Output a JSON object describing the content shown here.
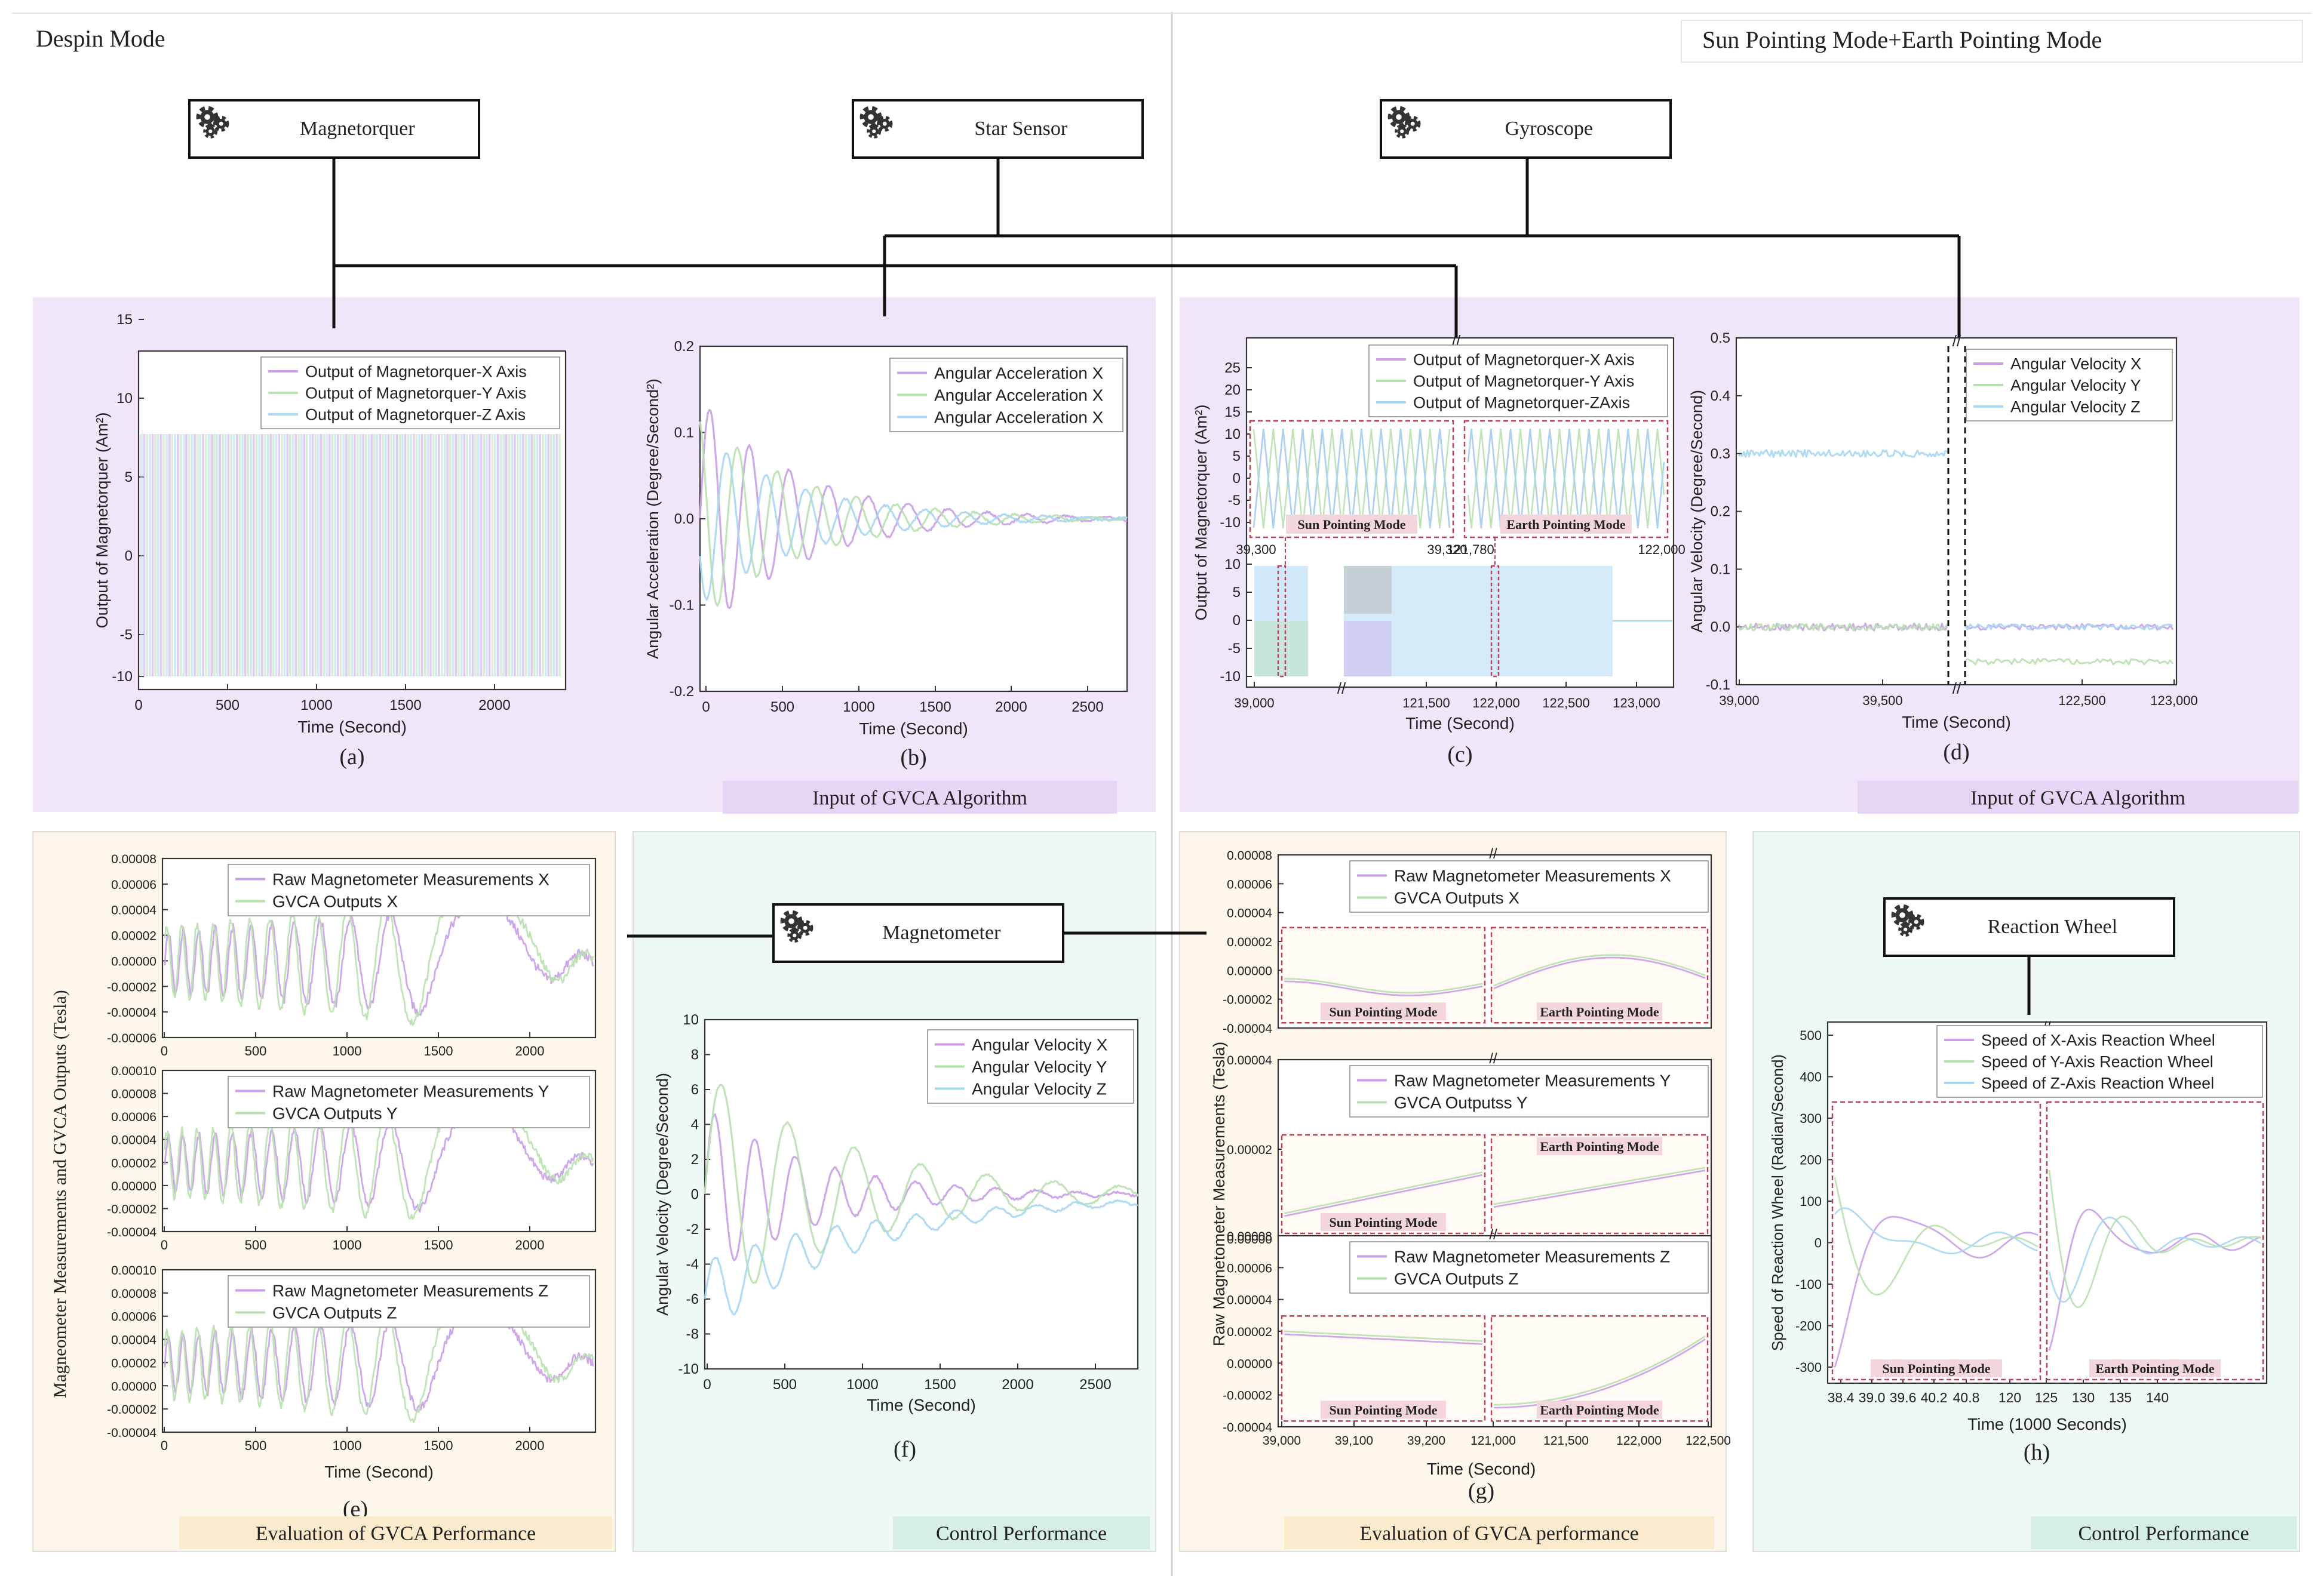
{
  "modes": {
    "left": "Despin Mode",
    "right": "Sun Pointing Mode+Earth Pointing Mode"
  },
  "devices": {
    "magnetorquer": "Magnetorquer",
    "star_sensor": "Star Sensor",
    "gyroscope": "Gyroscope",
    "magnetometer": "Magnetometer",
    "reaction_wheel": "Reaction Wheel"
  },
  "section_labels": {
    "input_left": "Input of GVCA Algorithm",
    "input_right": "Input of GVCA Algorithm",
    "eval_left": "Evaluation of GVCA Performance",
    "control_left": "Control Performance",
    "eval_right": "Evaluation of GVCA performance",
    "control_right": "Control Performance"
  },
  "mode_tags": {
    "sun": "Sun Pointing Mode",
    "earth": "Earth Pointing Mode"
  },
  "colors": {
    "purple": "#c9a0e8",
    "green": "#b9e0b0",
    "blue": "#a9d6f2",
    "inset": "#b8405a",
    "panel_purple": "#efe6fa",
    "panel_cream": "#fdf6ea",
    "panel_mint": "#eef8f4"
  },
  "chart_data": [
    {
      "id": "a",
      "type": "line",
      "caption": "(a)",
      "xlabel": "Time (Second)",
      "ylabel": "Output of Magnetorquer (Am²)",
      "xlim": [
        0,
        2400
      ],
      "ylim": [
        -12,
        16
      ],
      "x_ticks": [
        "0",
        "500",
        "1000",
        "1500",
        "2000"
      ],
      "y_ticks": [
        "-10",
        "-5",
        "0",
        "5",
        "10",
        "15"
      ],
      "series": [
        {
          "name": "Output of Magnetorquer-X Axis",
          "color": "#c9a0e8",
          "pattern": "bang-bang ±10"
        },
        {
          "name": "Output of Magnetorquer-Y Axis",
          "color": "#b9e0b0",
          "pattern": "bang-bang ±10"
        },
        {
          "name": "Output of Magnetorquer-Z Axis",
          "color": "#a9d6f2",
          "pattern": "bang-bang ±10"
        }
      ]
    },
    {
      "id": "b",
      "type": "line",
      "caption": "(b)",
      "xlabel": "Time (Second)",
      "ylabel": "Angular Acceleration (Degree/Second²)",
      "xlim": [
        0,
        2800
      ],
      "ylim": [
        -0.2,
        0.2
      ],
      "x_ticks": [
        "0",
        "500",
        "1000",
        "1500",
        "2000",
        "2500"
      ],
      "y_ticks": [
        "-0.2",
        "-0.1",
        "0.0",
        "0.1",
        "0.2"
      ],
      "series": [
        {
          "name": "Angular Acceleration X",
          "color": "#c9a0e8",
          "amp": 0.14,
          "period": 260,
          "decay": 650,
          "phase": 0
        },
        {
          "name": "Angular Acceleration X",
          "color": "#b9e0b0",
          "amp": 0.12,
          "period": 260,
          "decay": 650,
          "phase": 1.9
        },
        {
          "name": "Angular Acceleration X",
          "color": "#a9d6f2",
          "amp": 0.1,
          "period": 260,
          "decay": 650,
          "phase": 3.6
        }
      ]
    },
    {
      "id": "c",
      "type": "line",
      "caption": "(c)",
      "xlabel": "Time (Second)",
      "ylabel": "Output of Magnetorquer (Am²)",
      "x_ticks": [
        "39,000",
        "121,500",
        "122,000",
        "122,500",
        "123,000"
      ],
      "y_ticks_top": [
        "-10",
        "-5",
        "0",
        "5",
        "10",
        "15",
        "20",
        "25"
      ],
      "y_ticks_bottom": [
        "-10",
        "-5",
        "0",
        "5",
        "10"
      ],
      "inset_ticks": [
        "39,300",
        "39,320",
        "121,780",
        "122,000"
      ],
      "series": [
        {
          "name": "Output of Magnetorquer-X Axis",
          "color": "#c9a0e8"
        },
        {
          "name": "Output of Magnetorquer-Y Axis",
          "color": "#b9e0b0"
        },
        {
          "name": "Output of Magnetorquer-ZAxis",
          "color": "#a9d6f2"
        }
      ]
    },
    {
      "id": "d",
      "type": "line",
      "caption": "(d)",
      "xlabel": "Time (Second)",
      "ylabel": "Angular Velocity (Degree/Second)",
      "x_ticks": [
        "39,000",
        "39,500",
        "122,500",
        "123,000"
      ],
      "y_ticks": [
        "-0.1",
        "0.0",
        "0.1",
        "0.2",
        "0.3",
        "0.4",
        "0.5"
      ],
      "series": [
        {
          "name": "Angular Velocity X",
          "color": "#c9a0e8",
          "level_sun": 0.0,
          "level_earth": 0.0
        },
        {
          "name": "Angular Velocity Y",
          "color": "#b9e0b0",
          "level_sun": 0.0,
          "level_earth": -0.06
        },
        {
          "name": "Angular Velocity Z",
          "color": "#a9d6f2",
          "level_sun": 0.3,
          "level_earth": 0.0
        }
      ]
    },
    {
      "id": "e",
      "type": "line",
      "caption": "(e)",
      "xlabel": "Time (Second)",
      "ylabel": "Magneometer Measurements and GVCA Outputs (Tesla)",
      "x_ticks": [
        "0",
        "500",
        "1000",
        "1500",
        "2000"
      ],
      "panels": [
        {
          "legend": [
            "Raw Magnetometer Measurements X",
            "GVCA Outputs X"
          ],
          "y_ticks": [
            "-0.00006",
            "-0.00004",
            "-0.00002",
            "0.00000",
            "0.00002",
            "0.00004",
            "0.00006",
            "0.00008"
          ]
        },
        {
          "legend": [
            "Raw Magnetometer Measurements Y",
            "GVCA Outputs Y"
          ],
          "y_ticks": [
            "-0.00004",
            "-0.00002",
            "0.00000",
            "0.00002",
            "0.00004",
            "0.00006",
            "0.00008",
            "0.00010"
          ]
        },
        {
          "legend": [
            "Raw Magnetometer Measurements Z",
            "GVCA Outputs Z"
          ],
          "y_ticks": [
            "-0.00004",
            "-0.00002",
            "0.00000",
            "0.00002",
            "0.00004",
            "0.00006",
            "0.00008",
            "0.00010"
          ]
        }
      ]
    },
    {
      "id": "f",
      "type": "line",
      "caption": "(f)",
      "xlabel": "Time (Second)",
      "ylabel": "Angular Velocity (Degree/Second)",
      "xlim": [
        0,
        2800
      ],
      "ylim": [
        -10,
        10
      ],
      "x_ticks": [
        "0",
        "500",
        "1000",
        "1500",
        "2000",
        "2500"
      ],
      "y_ticks": [
        "-10",
        "-8",
        "-6",
        "-4",
        "-2",
        "0",
        "2",
        "4",
        "6",
        "8",
        "10"
      ],
      "series": [
        {
          "name": "Angular Velocity X",
          "color": "#c9a0e8",
          "amp": 5,
          "period": 260,
          "decay": 700,
          "offset": 0
        },
        {
          "name": "Angular Velocity Y",
          "color": "#b9e0b0",
          "amp": 7,
          "period": 430,
          "decay": 1000,
          "offset": 0
        },
        {
          "name": "Angular Velocity Z",
          "color": "#a9d6f2",
          "amp": 2.2,
          "period": 260,
          "decay": 1000,
          "offset": -6
        }
      ]
    },
    {
      "id": "g",
      "type": "line",
      "caption": "(g)",
      "xlabel": "Time (Second)",
      "ylabel": "Raw Magnetometer Measurements (Tesla)",
      "x_ticks": [
        "39,000",
        "39,100",
        "39,200",
        "121,000",
        "121,500",
        "122,000",
        "122,500"
      ],
      "panels": [
        {
          "legend": [
            "Raw Magnetometer Measurements X",
            "GVCA Outputs X"
          ],
          "y_ticks": [
            "-0.00004",
            "-0.00002",
            "0.00000",
            "0.00002",
            "0.00004",
            "0.00006",
            "0.00008"
          ]
        },
        {
          "legend": [
            "Raw Magnetometer Measurements Y",
            "GVCA Outputss Y"
          ],
          "y_ticks": [
            "0.00000",
            "0.00002",
            "0.00004"
          ]
        },
        {
          "legend": [
            "Raw Magnetometer Measurements Z",
            "GVCA Outputs Z"
          ],
          "y_ticks": [
            "-0.00004",
            "-0.00002",
            "0.00000",
            "0.00002",
            "0.00004",
            "0.00006",
            "0.00008"
          ]
        }
      ]
    },
    {
      "id": "h",
      "type": "line",
      "caption": "(h)",
      "xlabel": "Time (1000 Seconds)",
      "ylabel": "Speed of Reaction Wheel (Radian/Second)",
      "x_ticks": [
        "38.4",
        "39.0",
        "39.6",
        "40.2",
        "40.8",
        "120",
        "125",
        "130",
        "135",
        "140"
      ],
      "y_ticks": [
        "-300",
        "-200",
        "-100",
        "0",
        "100",
        "200",
        "300",
        "400",
        "500"
      ],
      "series": [
        {
          "name": "Speed of X-Axis Reaction Wheel",
          "color": "#c9a0e8"
        },
        {
          "name": "Speed of Y-Axis Reaction Wheel",
          "color": "#b9e0b0"
        },
        {
          "name": "Speed of Z-Axis Reaction Wheel",
          "color": "#a9d6f2"
        }
      ]
    }
  ]
}
